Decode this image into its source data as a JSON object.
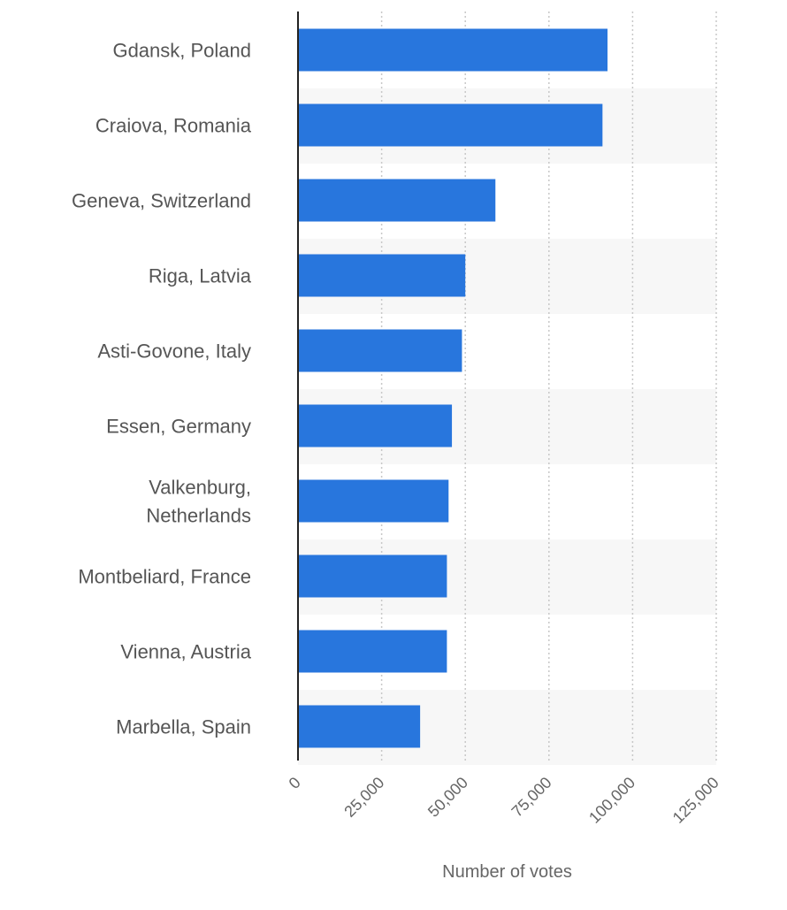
{
  "chart_data": {
    "type": "bar",
    "orientation": "horizontal",
    "title": "",
    "xlabel": "Number of votes",
    "ylabel": "",
    "categories": [
      "Gdansk, Poland",
      "Craiova, Romania",
      "Geneva, Switzerland",
      "Riga, Latvia",
      "Asti-Govone, Italy",
      "Essen, Germany",
      "Valkenburg, Netherlands",
      "Montbeliard, France",
      "Vienna, Austria",
      "Marbella, Spain"
    ],
    "category_lines": [
      [
        "Gdansk, Poland"
      ],
      [
        "Craiova, Romania"
      ],
      [
        "Geneva, Switzerland"
      ],
      [
        "Riga, Latvia"
      ],
      [
        "Asti-Govone, Italy"
      ],
      [
        "Essen, Germany"
      ],
      [
        "Valkenburg,",
        "Netherlands"
      ],
      [
        "Montbeliard, France"
      ],
      [
        "Vienna, Austria"
      ],
      [
        "Marbella, Spain"
      ]
    ],
    "values": [
      92500,
      91000,
      59000,
      50000,
      49000,
      46000,
      45000,
      44500,
      44500,
      36500
    ],
    "xlim": [
      0,
      125000
    ],
    "xticks": [
      0,
      25000,
      50000,
      75000,
      100000,
      125000
    ],
    "xtick_labels": [
      "0",
      "25,000",
      "50,000",
      "75,000",
      "100,000",
      "125,000"
    ],
    "grid": "vertical dotted",
    "legend": "none",
    "colors": {
      "bar": "#2876dd",
      "band": "#f7f7f7",
      "grid": "#c8c8c8",
      "axis": "#222222"
    }
  }
}
